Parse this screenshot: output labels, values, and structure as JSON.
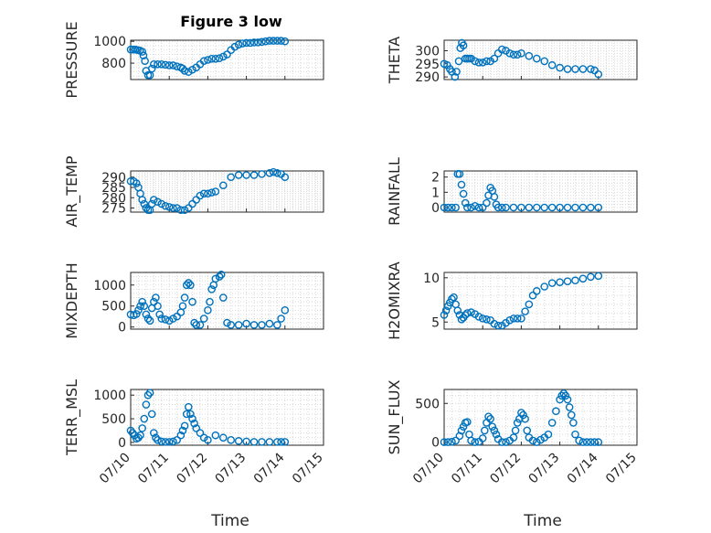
{
  "figure": {
    "title": "Figure 3 low",
    "marker_color": "#0072BD",
    "axis_color": "#262626",
    "grid_color": "#d9d9d9"
  },
  "x_axis": {
    "label": "Time",
    "tick_labels": [
      "07/10",
      "07/11",
      "07/12",
      "07/13",
      "07/14",
      "07/15"
    ],
    "xlim_days": [
      0,
      5
    ]
  },
  "chart_data": [
    {
      "type": "scatter",
      "ylabel": "PRESSURE",
      "ylim": [
        650,
        1010
      ],
      "yticks": [
        800,
        1000
      ],
      "x": [
        0.0,
        0.06,
        0.12,
        0.18,
        0.24,
        0.3,
        0.33,
        0.37,
        0.4,
        0.45,
        0.5,
        0.55,
        0.6,
        0.7,
        0.8,
        0.9,
        1.0,
        1.1,
        1.2,
        1.3,
        1.35,
        1.4,
        1.5,
        1.6,
        1.7,
        1.8,
        1.9,
        2.0,
        2.1,
        2.2,
        2.3,
        2.4,
        2.5,
        2.6,
        2.7,
        2.8,
        2.9,
        3.0,
        3.1,
        3.2,
        3.3,
        3.4,
        3.5,
        3.6,
        3.7,
        3.8,
        3.9,
        4.0
      ],
      "y": [
        925,
        925,
        925,
        920,
        915,
        905,
        870,
        820,
        730,
        690,
        690,
        750,
        790,
        790,
        790,
        785,
        780,
        780,
        770,
        760,
        750,
        730,
        720,
        740,
        760,
        790,
        820,
        830,
        840,
        840,
        845,
        860,
        880,
        920,
        950,
        970,
        980,
        985,
        985,
        990,
        990,
        995,
        1000,
        1005,
        1005,
        1005,
        1005,
        1000
      ]
    },
    {
      "type": "scatter",
      "ylabel": "THETA",
      "ylim": [
        289,
        304
      ],
      "yticks": [
        290,
        295,
        300
      ],
      "x": [
        0.0,
        0.08,
        0.15,
        0.2,
        0.28,
        0.32,
        0.38,
        0.42,
        0.46,
        0.5,
        0.55,
        0.6,
        0.65,
        0.7,
        0.8,
        0.9,
        1.0,
        1.1,
        1.2,
        1.3,
        1.4,
        1.5,
        1.6,
        1.7,
        1.8,
        1.9,
        2.0,
        2.2,
        2.4,
        2.6,
        2.8,
        3.0,
        3.2,
        3.4,
        3.6,
        3.8,
        3.9,
        4.0
      ],
      "y": [
        295,
        294.5,
        293,
        292,
        290,
        292,
        296,
        301,
        303,
        302,
        297,
        297,
        297,
        297,
        296,
        295.5,
        295.5,
        296,
        296,
        297,
        299,
        300.5,
        300,
        299,
        298.5,
        298.5,
        299,
        298,
        297,
        296,
        294.5,
        293.5,
        293,
        293,
        293,
        293,
        292.5,
        291
      ]
    },
    {
      "type": "scatter",
      "ylabel": "AIR_TEMP",
      "ylim": [
        273,
        293
      ],
      "yticks": [
        275,
        280,
        285,
        290
      ],
      "x": [
        0.0,
        0.08,
        0.15,
        0.2,
        0.25,
        0.3,
        0.35,
        0.4,
        0.45,
        0.5,
        0.55,
        0.6,
        0.7,
        0.8,
        0.9,
        1.0,
        1.1,
        1.2,
        1.3,
        1.4,
        1.5,
        1.6,
        1.7,
        1.8,
        1.9,
        2.0,
        2.1,
        2.2,
        2.4,
        2.6,
        2.8,
        3.0,
        3.2,
        3.4,
        3.6,
        3.7,
        3.8,
        3.9,
        4.0
      ],
      "y": [
        288,
        288,
        287,
        285,
        282,
        279,
        277,
        275,
        274,
        274,
        277,
        279,
        278,
        277,
        276,
        275.5,
        275,
        275,
        274,
        274,
        275,
        277,
        279,
        281,
        282,
        282,
        282.5,
        283,
        286,
        290,
        291,
        291,
        291,
        291.5,
        292,
        292.5,
        292,
        291.5,
        290
      ]
    },
    {
      "type": "scatter",
      "ylabel": "RAINFALL",
      "ylim": [
        -0.3,
        2.4
      ],
      "yticks": [
        0,
        1,
        2
      ],
      "x": [
        0.0,
        0.1,
        0.2,
        0.3,
        0.35,
        0.4,
        0.45,
        0.5,
        0.55,
        0.6,
        0.7,
        0.8,
        0.9,
        1.0,
        1.1,
        1.15,
        1.2,
        1.25,
        1.3,
        1.35,
        1.4,
        1.5,
        1.6,
        1.8,
        2.0,
        2.2,
        2.4,
        2.6,
        2.8,
        3.0,
        3.2,
        3.4,
        3.6,
        3.8,
        4.0
      ],
      "y": [
        0,
        0,
        0,
        0,
        2.2,
        2.2,
        1.5,
        0.9,
        0.3,
        0,
        0,
        0.1,
        0,
        0,
        0.3,
        0.8,
        1.3,
        1.1,
        0.7,
        0.2,
        0,
        0,
        0,
        0,
        0,
        0,
        0,
        0,
        0,
        0,
        0,
        0,
        0,
        0,
        0
      ]
    },
    {
      "type": "scatter",
      "ylabel": "MIXDEPTH",
      "ylim": [
        -50,
        1300
      ],
      "yticks": [
        0,
        500,
        1000
      ],
      "x": [
        0.0,
        0.08,
        0.15,
        0.2,
        0.25,
        0.3,
        0.35,
        0.4,
        0.45,
        0.5,
        0.55,
        0.6,
        0.65,
        0.7,
        0.75,
        0.8,
        0.9,
        1.0,
        1.1,
        1.2,
        1.3,
        1.35,
        1.4,
        1.45,
        1.5,
        1.55,
        1.6,
        1.65,
        1.7,
        1.8,
        1.9,
        2.0,
        2.05,
        2.1,
        2.15,
        2.2,
        2.3,
        2.35,
        2.4,
        2.5,
        2.6,
        2.8,
        3.0,
        3.2,
        3.4,
        3.6,
        3.8,
        3.9,
        4.0
      ],
      "y": [
        300,
        280,
        310,
        400,
        500,
        600,
        500,
        300,
        200,
        150,
        450,
        600,
        700,
        500,
        300,
        200,
        180,
        150,
        200,
        250,
        350,
        500,
        700,
        1000,
        1050,
        1000,
        600,
        100,
        50,
        50,
        200,
        400,
        600,
        900,
        1000,
        1150,
        1200,
        1250,
        700,
        100,
        50,
        50,
        80,
        50,
        50,
        80,
        50,
        200,
        400
      ]
    },
    {
      "type": "scatter",
      "ylabel": "H2OMIXRA",
      "ylim": [
        4.2,
        10.6
      ],
      "yticks": [
        5,
        10
      ],
      "x": [
        0.0,
        0.05,
        0.1,
        0.15,
        0.2,
        0.25,
        0.3,
        0.35,
        0.4,
        0.45,
        0.5,
        0.55,
        0.6,
        0.7,
        0.8,
        0.9,
        1.0,
        1.1,
        1.2,
        1.3,
        1.4,
        1.5,
        1.6,
        1.7,
        1.8,
        1.9,
        2.0,
        2.1,
        2.2,
        2.3,
        2.4,
        2.6,
        2.8,
        3.0,
        3.2,
        3.4,
        3.6,
        3.8,
        4.0
      ],
      "y": [
        5.8,
        6.3,
        6.8,
        7.2,
        7.6,
        7.8,
        7.0,
        6.3,
        5.8,
        5.3,
        5.5,
        5.8,
        6.0,
        6.1,
        5.9,
        5.6,
        5.4,
        5.3,
        5.2,
        4.8,
        4.6,
        4.6,
        4.9,
        5.2,
        5.4,
        5.4,
        5.4,
        6.2,
        7.0,
        8.0,
        8.5,
        9.0,
        9.4,
        9.5,
        9.6,
        9.7,
        9.9,
        10.1,
        10.2
      ]
    },
    {
      "type": "scatter",
      "ylabel": "TERR_MSL",
      "ylim": [
        -60,
        1120
      ],
      "yticks": [
        0,
        500,
        1000
      ],
      "x": [
        0.0,
        0.05,
        0.1,
        0.15,
        0.2,
        0.25,
        0.3,
        0.35,
        0.4,
        0.45,
        0.5,
        0.55,
        0.6,
        0.65,
        0.7,
        0.8,
        0.9,
        1.0,
        1.1,
        1.2,
        1.3,
        1.35,
        1.4,
        1.45,
        1.5,
        1.55,
        1.6,
        1.65,
        1.7,
        1.8,
        1.9,
        2.0,
        2.2,
        2.4,
        2.6,
        2.8,
        3.0,
        3.2,
        3.4,
        3.6,
        3.8,
        3.9,
        4.0
      ],
      "y": [
        250,
        200,
        150,
        80,
        100,
        150,
        300,
        500,
        800,
        1000,
        1050,
        600,
        200,
        100,
        50,
        20,
        10,
        10,
        20,
        50,
        150,
        250,
        350,
        600,
        750,
        600,
        500,
        400,
        300,
        200,
        100,
        50,
        150,
        100,
        50,
        30,
        20,
        10,
        10,
        10,
        10,
        10,
        10
      ]
    },
    {
      "type": "scatter",
      "ylabel": "SUN_FLUX",
      "ylim": [
        -40,
        680
      ],
      "yticks": [
        0,
        500
      ],
      "x": [
        0.0,
        0.1,
        0.2,
        0.3,
        0.4,
        0.45,
        0.5,
        0.55,
        0.6,
        0.65,
        0.7,
        0.8,
        0.9,
        1.0,
        1.05,
        1.1,
        1.15,
        1.2,
        1.25,
        1.3,
        1.35,
        1.4,
        1.5,
        1.6,
        1.7,
        1.8,
        1.85,
        1.9,
        1.95,
        2.0,
        2.05,
        2.1,
        2.15,
        2.2,
        2.3,
        2.4,
        2.5,
        2.6,
        2.7,
        2.8,
        2.9,
        3.0,
        3.05,
        3.1,
        3.15,
        3.2,
        3.25,
        3.3,
        3.35,
        3.4,
        3.5,
        3.6,
        3.7,
        3.8,
        3.9,
        4.0
      ],
      "y": [
        0,
        0,
        5,
        20,
        80,
        150,
        200,
        250,
        260,
        100,
        20,
        0,
        5,
        50,
        150,
        250,
        330,
        300,
        200,
        150,
        100,
        40,
        0,
        0,
        20,
        60,
        150,
        250,
        300,
        380,
        350,
        300,
        150,
        60,
        20,
        0,
        30,
        60,
        100,
        250,
        400,
        550,
        600,
        630,
        600,
        550,
        450,
        350,
        250,
        100,
        20,
        0,
        0,
        0,
        0,
        0
      ]
    }
  ]
}
